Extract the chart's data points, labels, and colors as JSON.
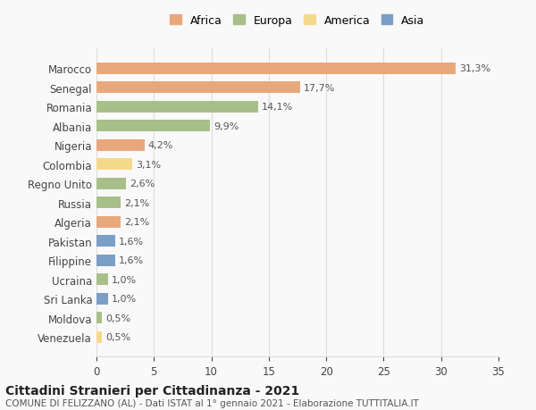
{
  "countries": [
    "Marocco",
    "Senegal",
    "Romania",
    "Albania",
    "Nigeria",
    "Colombia",
    "Regno Unito",
    "Russia",
    "Algeria",
    "Pakistan",
    "Filippine",
    "Ucraina",
    "Sri Lanka",
    "Moldova",
    "Venezuela"
  ],
  "values": [
    31.3,
    17.7,
    14.1,
    9.9,
    4.2,
    3.1,
    2.6,
    2.1,
    2.1,
    1.6,
    1.6,
    1.0,
    1.0,
    0.5,
    0.5
  ],
  "labels": [
    "31,3%",
    "17,7%",
    "14,1%",
    "9,9%",
    "4,2%",
    "3,1%",
    "2,6%",
    "2,1%",
    "2,1%",
    "1,6%",
    "1,6%",
    "1,0%",
    "1,0%",
    "0,5%",
    "0,5%"
  ],
  "continents": [
    "Africa",
    "Africa",
    "Europa",
    "Europa",
    "Africa",
    "America",
    "Europa",
    "Europa",
    "Africa",
    "Asia",
    "Asia",
    "Europa",
    "Asia",
    "Europa",
    "America"
  ],
  "colors": {
    "Africa": "#E8A87C",
    "Europa": "#A8BF8A",
    "America": "#F5D98B",
    "Asia": "#7B9EC4"
  },
  "legend_order": [
    "Africa",
    "Europa",
    "America",
    "Asia"
  ],
  "legend_colors": [
    "#E8A87C",
    "#A8BF8A",
    "#F5D98B",
    "#7B9EC4"
  ],
  "title_main": "Cittadini Stranieri per Cittadinanza - 2021",
  "title_sub": "COMUNE DI FELIZZANO (AL) - Dati ISTAT al 1° gennaio 2021 - Elaborazione TUTTITALIA.IT",
  "xlim": [
    0,
    35
  ],
  "xticks": [
    0,
    5,
    10,
    15,
    20,
    25,
    30,
    35
  ],
  "bg_color": "#f9f9f9",
  "grid_color": "#dddddd"
}
